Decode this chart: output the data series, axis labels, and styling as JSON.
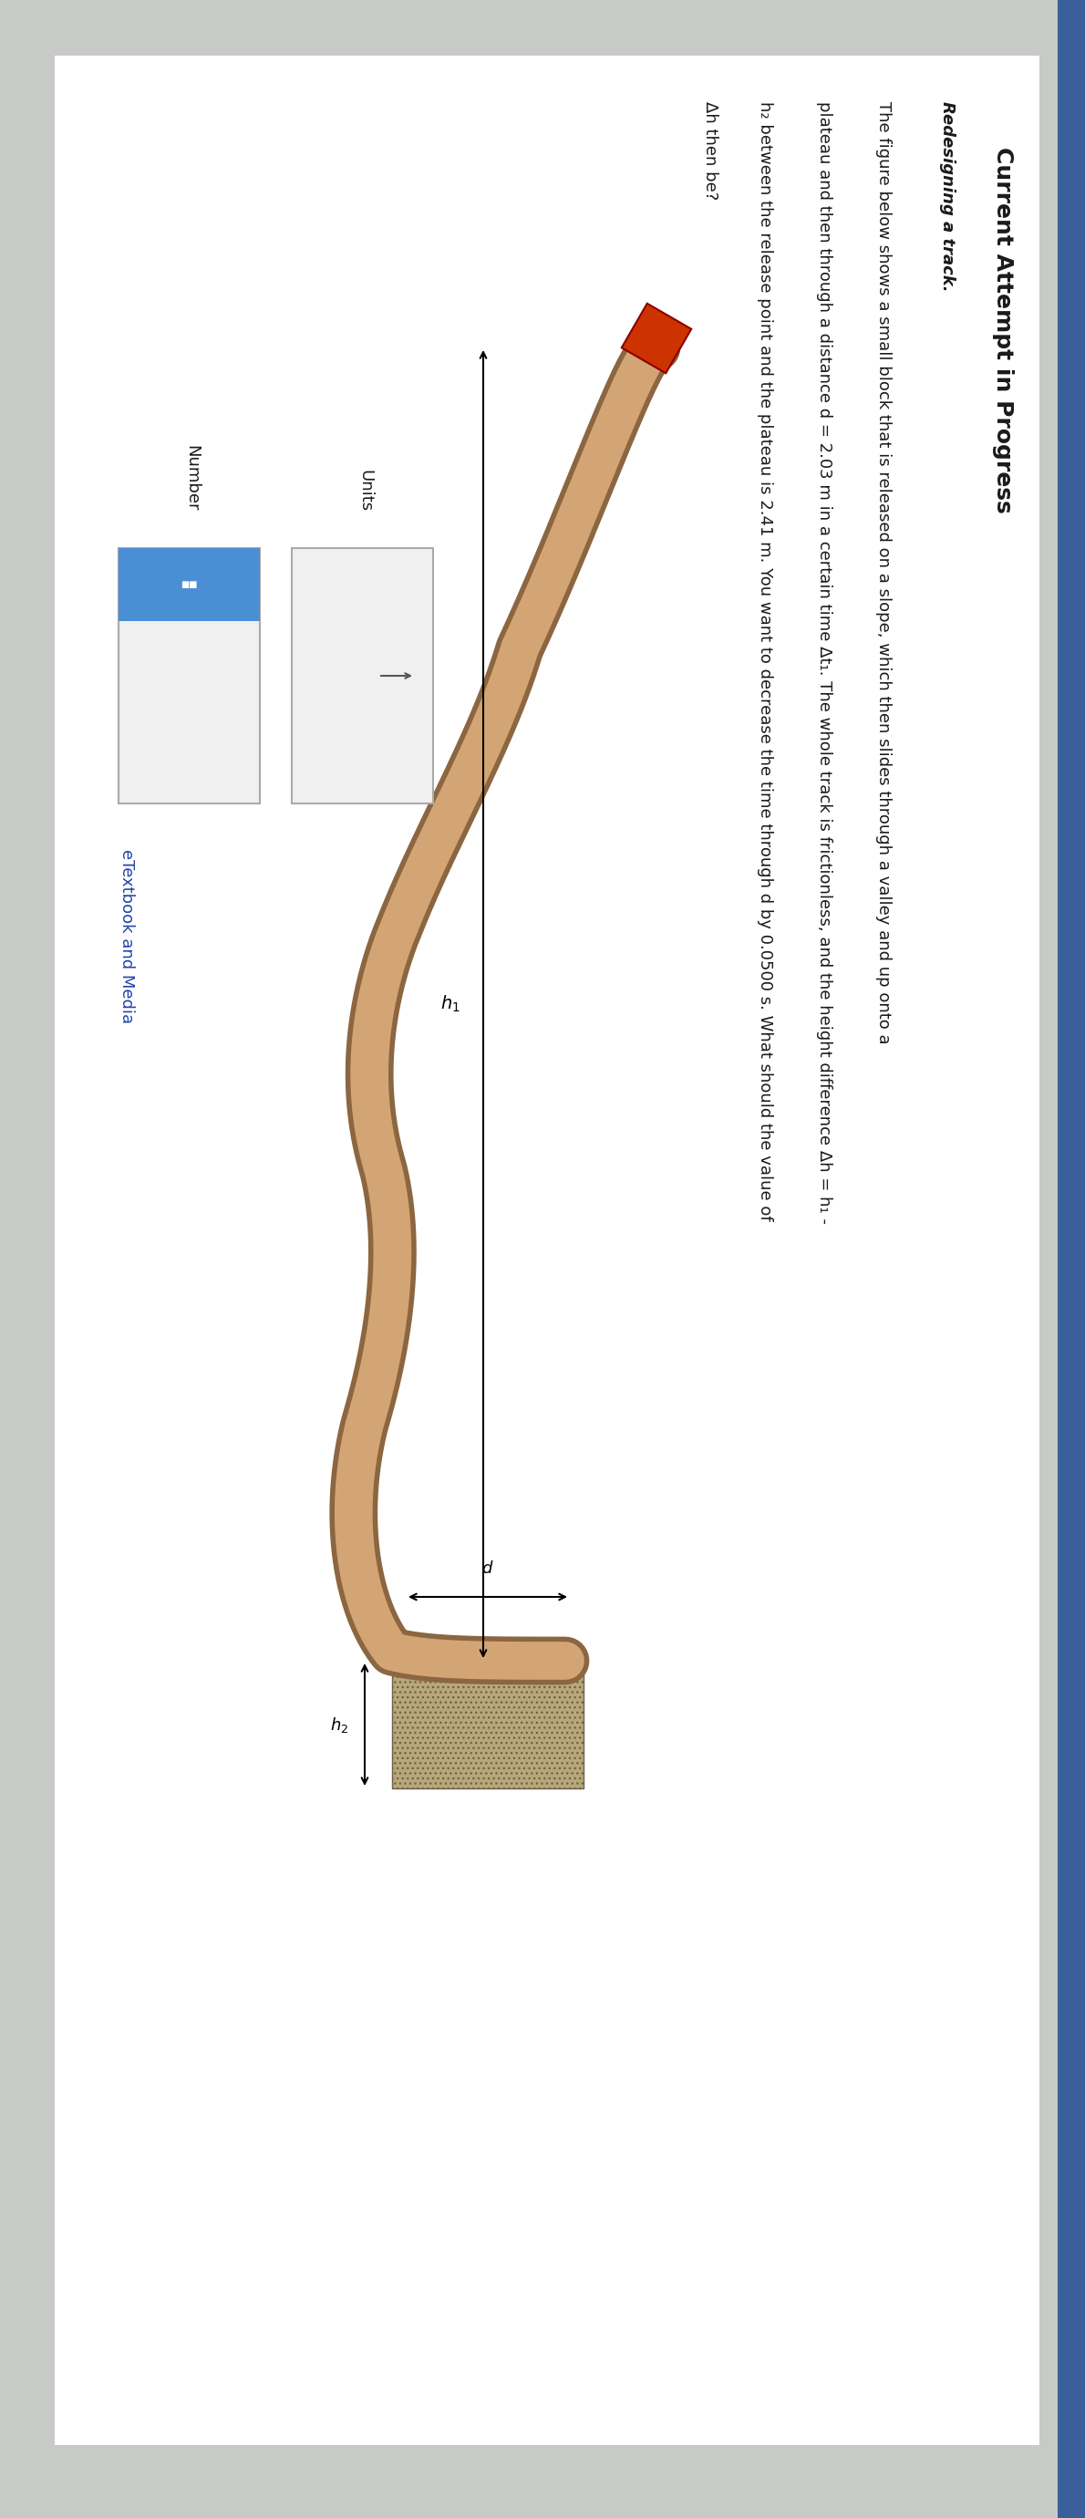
{
  "title": "Current Attempt in Progress",
  "line1": "Redesigning a track.",
  "line2": "The figure below shows a small block that is released on a slope, which then slides through a valley and up onto a",
  "line3": "plateau and then through a distance d = 2.03 m in a certain time Δt₁. The whole track is frictionless, and the height difference Δh = h₁ -",
  "line4": "h₂ between the release point and the plateau is 2.41 m. You want to decrease the time through d by 0.0500 s. What should the value of",
  "line5": "Δh then be?",
  "number_label": "Number",
  "units_label": "Units",
  "etextbook_label": "eTextbook and Media",
  "bg_color": "#c8cac8",
  "panel_color": "#e8e8e8",
  "track_fill": "#d4a574",
  "track_edge": "#8B6640",
  "block_color": "#cc3300",
  "block_edge": "#8B0000",
  "ground_fill": "#b8a878",
  "ground_edge": "#706050",
  "input_fill": "#f0f0f0",
  "input_edge": "#aaaaaa",
  "blue_btn": "#4a8fd4",
  "arrow_btn": "#555555",
  "text_color": "#1a1a1a",
  "title_color": "#1a1a1a",
  "etextbook_color": "#2244aa",
  "sidebar_color": "#3a5f9a",
  "font_title": 18,
  "font_body": 13,
  "font_label": 13,
  "font_italic_bold": 13
}
